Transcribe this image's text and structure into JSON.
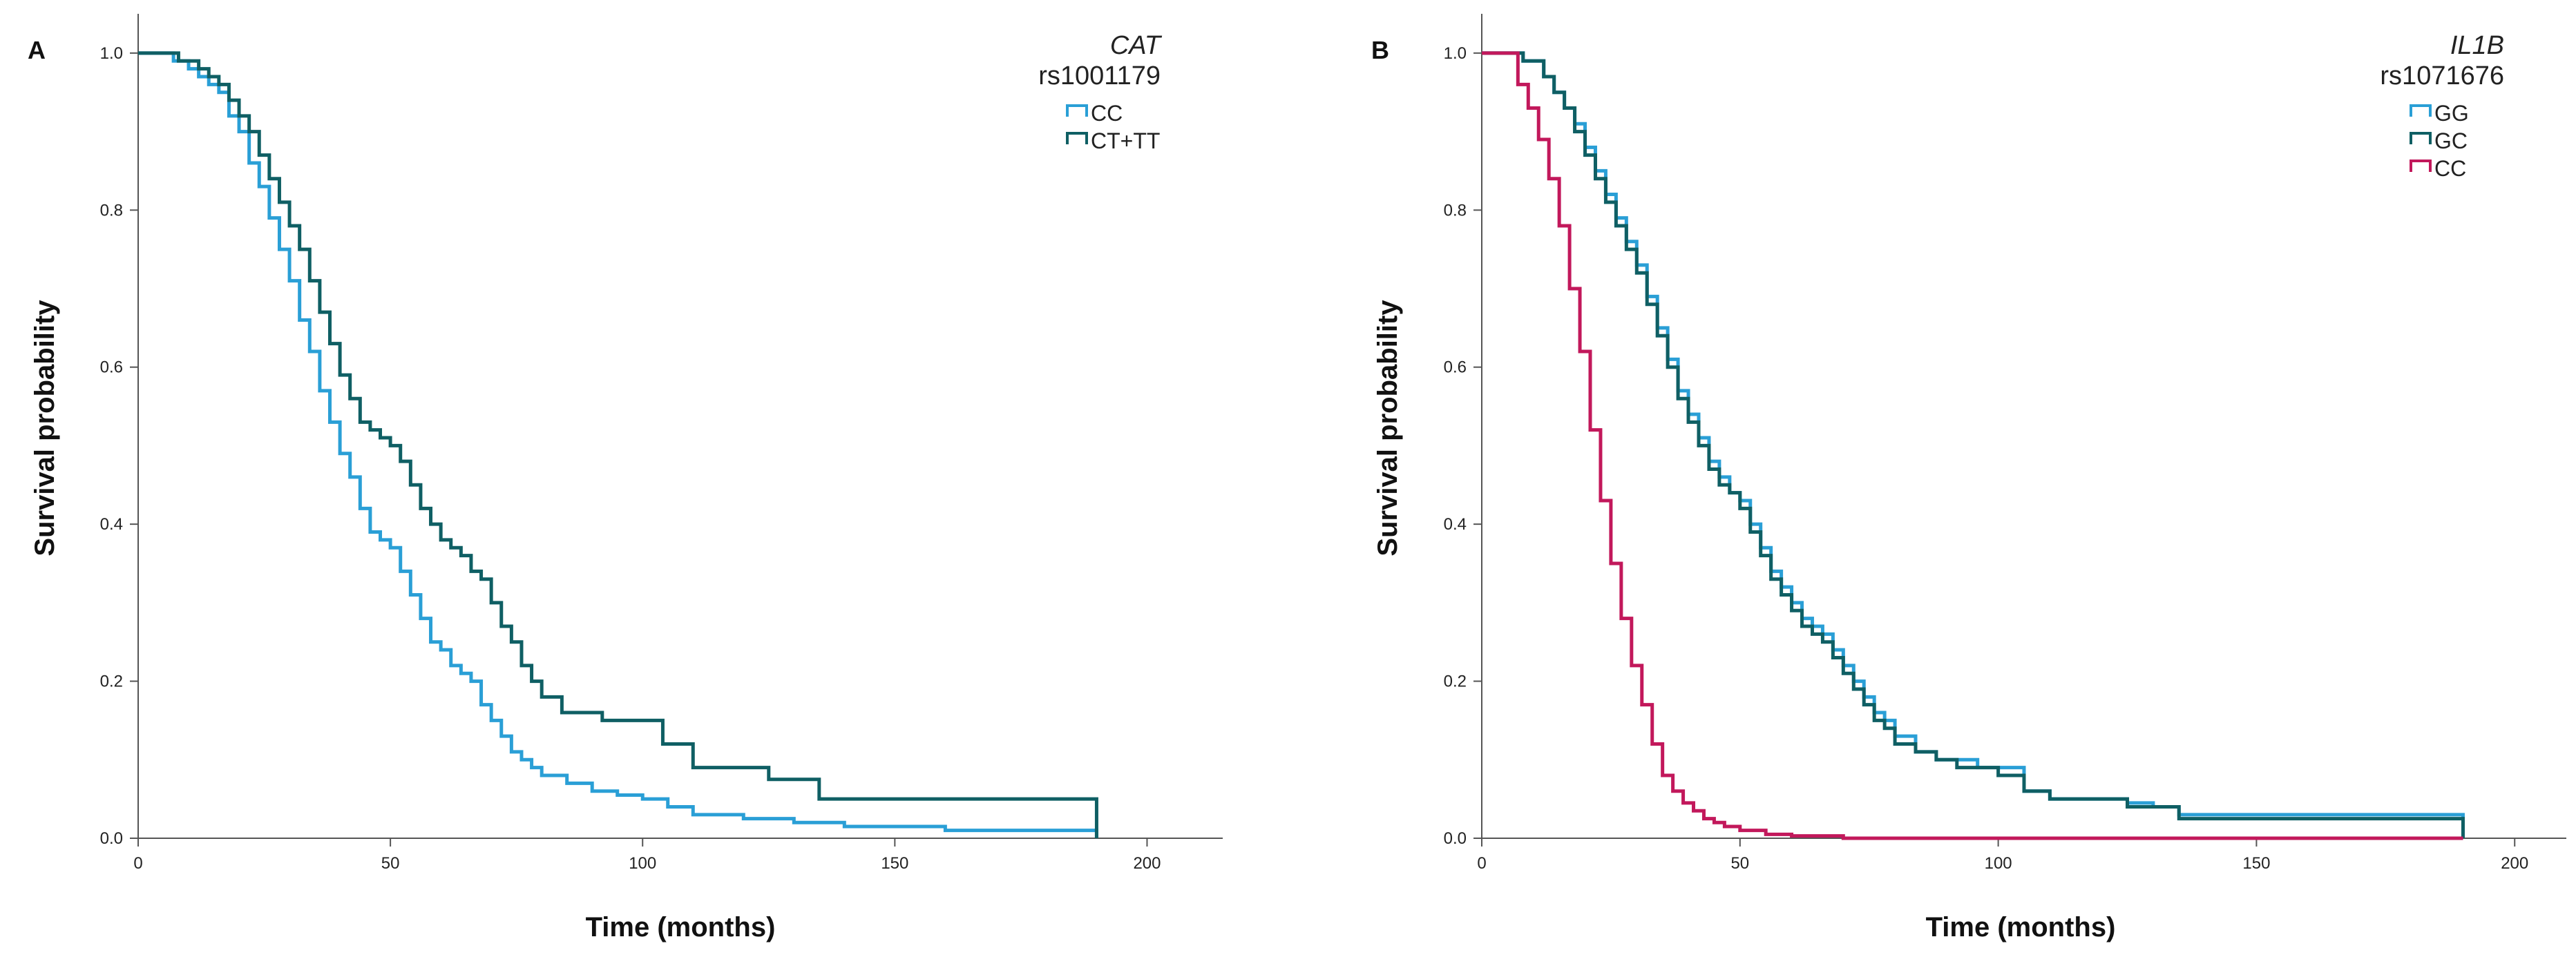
{
  "chart_data": [
    {
      "type": "line",
      "subtype": "kaplan-meier",
      "panel_label": "A",
      "legend_title_gene": "CAT",
      "legend_title_snp": "rs1001179",
      "xlabel": "Time (months)",
      "ylabel": "Survival probability",
      "xlim": [
        0,
        215
      ],
      "ylim": [
        0,
        1.05
      ],
      "x_ticks": [
        0,
        50,
        100,
        150,
        200
      ],
      "y_ticks": [
        "0.0",
        "0.2",
        "0.4",
        "0.6",
        "0.8",
        "1.0"
      ],
      "legend_position": "top-right",
      "series": [
        {
          "name": "CC",
          "color": "#2a9fd6",
          "x": [
            0,
            7,
            10,
            12,
            14,
            16,
            18,
            20,
            22,
            24,
            26,
            28,
            30,
            32,
            34,
            36,
            38,
            40,
            42,
            44,
            46,
            48,
            50,
            52,
            54,
            56,
            58,
            60,
            62,
            64,
            66,
            68,
            70,
            72,
            74,
            76,
            78,
            80,
            85,
            90,
            95,
            100,
            105,
            110,
            115,
            120,
            130,
            140,
            150,
            160,
            170,
            180,
            190
          ],
          "y": [
            1.0,
            0.99,
            0.98,
            0.97,
            0.96,
            0.95,
            0.92,
            0.9,
            0.86,
            0.83,
            0.79,
            0.75,
            0.71,
            0.66,
            0.62,
            0.57,
            0.53,
            0.49,
            0.46,
            0.42,
            0.39,
            0.38,
            0.37,
            0.34,
            0.31,
            0.28,
            0.25,
            0.24,
            0.22,
            0.21,
            0.2,
            0.17,
            0.15,
            0.13,
            0.11,
            0.1,
            0.09,
            0.08,
            0.07,
            0.06,
            0.055,
            0.05,
            0.04,
            0.03,
            0.03,
            0.025,
            0.02,
            0.015,
            0.015,
            0.01,
            0.01,
            0.01,
            0.01
          ]
        },
        {
          "name": "CT+TT",
          "color": "#0f5f64",
          "x": [
            0,
            8,
            12,
            14,
            16,
            18,
            20,
            22,
            24,
            26,
            28,
            30,
            32,
            34,
            36,
            38,
            40,
            42,
            44,
            46,
            48,
            50,
            52,
            54,
            56,
            58,
            60,
            62,
            64,
            66,
            68,
            70,
            72,
            74,
            76,
            78,
            80,
            84,
            88,
            92,
            96,
            100,
            104,
            110,
            115,
            120,
            125,
            130,
            135,
            140,
            150,
            160,
            170,
            180,
            190
          ],
          "y": [
            1.0,
            0.99,
            0.98,
            0.97,
            0.96,
            0.94,
            0.92,
            0.9,
            0.87,
            0.84,
            0.81,
            0.78,
            0.75,
            0.71,
            0.67,
            0.63,
            0.59,
            0.56,
            0.53,
            0.52,
            0.51,
            0.5,
            0.48,
            0.45,
            0.42,
            0.4,
            0.38,
            0.37,
            0.36,
            0.34,
            0.33,
            0.3,
            0.27,
            0.25,
            0.22,
            0.2,
            0.18,
            0.16,
            0.16,
            0.15,
            0.15,
            0.15,
            0.12,
            0.09,
            0.09,
            0.09,
            0.075,
            0.075,
            0.05,
            0.05,
            0.05,
            0.05,
            0.05,
            0.05,
            0.05
          ]
        }
      ]
    },
    {
      "type": "line",
      "subtype": "kaplan-meier",
      "panel_label": "B",
      "legend_title_gene": "IL1B",
      "legend_title_snp": "rs1071676",
      "xlabel": "Time (months)",
      "ylabel": "Survival probability",
      "xlim": [
        0,
        210
      ],
      "ylim": [
        0,
        1.05
      ],
      "x_ticks": [
        0,
        50,
        100,
        150,
        200
      ],
      "y_ticks": [
        "0.0",
        "0.2",
        "0.4",
        "0.6",
        "0.8",
        "1.0"
      ],
      "legend_position": "top-right",
      "series": [
        {
          "name": "GG",
          "color": "#2a9fd6",
          "x": [
            0,
            8,
            12,
            14,
            16,
            18,
            20,
            22,
            24,
            26,
            28,
            30,
            32,
            34,
            36,
            38,
            40,
            42,
            44,
            46,
            48,
            50,
            52,
            54,
            56,
            58,
            60,
            62,
            64,
            66,
            68,
            70,
            72,
            74,
            76,
            78,
            80,
            84,
            88,
            92,
            96,
            100,
            105,
            110,
            115,
            120,
            125,
            130,
            135,
            140,
            150,
            160,
            170,
            180,
            190
          ],
          "y": [
            1.0,
            0.99,
            0.97,
            0.95,
            0.93,
            0.91,
            0.88,
            0.85,
            0.82,
            0.79,
            0.76,
            0.73,
            0.69,
            0.65,
            0.61,
            0.57,
            0.54,
            0.51,
            0.48,
            0.46,
            0.44,
            0.43,
            0.4,
            0.37,
            0.34,
            0.32,
            0.3,
            0.28,
            0.27,
            0.26,
            0.24,
            0.22,
            0.2,
            0.18,
            0.16,
            0.15,
            0.13,
            0.11,
            0.1,
            0.1,
            0.09,
            0.09,
            0.06,
            0.05,
            0.05,
            0.05,
            0.045,
            0.04,
            0.03,
            0.03,
            0.03,
            0.03,
            0.03,
            0.03,
            0.03
          ]
        },
        {
          "name": "GC",
          "color": "#0f5f64",
          "x": [
            0,
            8,
            12,
            14,
            16,
            18,
            20,
            22,
            24,
            26,
            28,
            30,
            32,
            34,
            36,
            38,
            40,
            42,
            44,
            46,
            48,
            50,
            52,
            54,
            56,
            58,
            60,
            62,
            64,
            66,
            68,
            70,
            72,
            74,
            76,
            78,
            80,
            84,
            88,
            92,
            96,
            100,
            105,
            110,
            115,
            120,
            125,
            130,
            135,
            140,
            150,
            160,
            170,
            180,
            190
          ],
          "y": [
            1.0,
            0.99,
            0.97,
            0.95,
            0.93,
            0.9,
            0.87,
            0.84,
            0.81,
            0.78,
            0.75,
            0.72,
            0.68,
            0.64,
            0.6,
            0.56,
            0.53,
            0.5,
            0.47,
            0.45,
            0.44,
            0.42,
            0.39,
            0.36,
            0.33,
            0.31,
            0.29,
            0.27,
            0.26,
            0.25,
            0.23,
            0.21,
            0.19,
            0.17,
            0.15,
            0.14,
            0.12,
            0.11,
            0.1,
            0.09,
            0.09,
            0.08,
            0.06,
            0.05,
            0.05,
            0.05,
            0.04,
            0.04,
            0.025,
            0.025,
            0.025,
            0.025,
            0.025,
            0.025,
            0.025
          ]
        },
        {
          "name": "CC",
          "color": "#c2185b",
          "x": [
            0,
            7,
            9,
            11,
            13,
            15,
            17,
            19,
            21,
            23,
            25,
            27,
            29,
            31,
            33,
            35,
            37,
            39,
            41,
            43,
            45,
            47,
            50,
            55,
            60,
            70,
            80,
            100,
            150,
            190
          ],
          "y": [
            1.0,
            0.96,
            0.93,
            0.89,
            0.84,
            0.78,
            0.7,
            0.62,
            0.52,
            0.43,
            0.35,
            0.28,
            0.22,
            0.17,
            0.12,
            0.08,
            0.06,
            0.045,
            0.035,
            0.025,
            0.02,
            0.015,
            0.01,
            0.005,
            0.003,
            0.0,
            0.0,
            0.0,
            0.0,
            0.0
          ]
        }
      ]
    }
  ]
}
